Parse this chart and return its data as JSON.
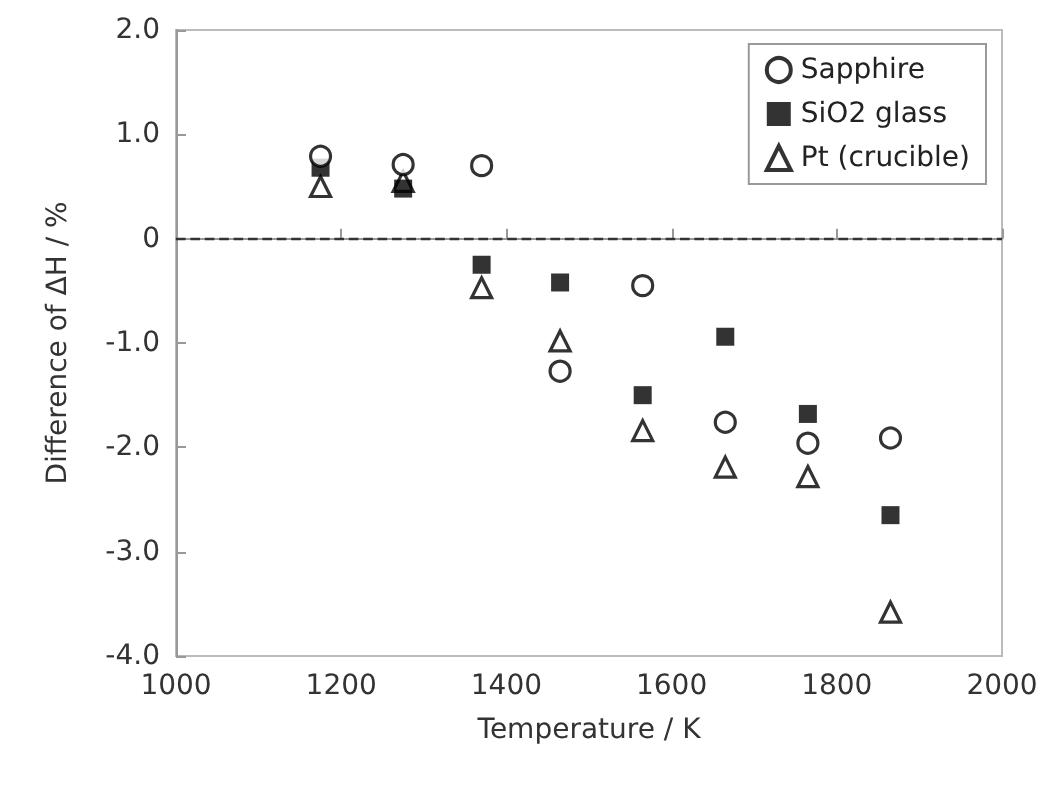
{
  "chart_data": {
    "type": "scatter",
    "xlabel": "Temperature / K",
    "ylabel": "Difference of ΔH / %",
    "x": [
      1175,
      1275,
      1370,
      1465,
      1565,
      1665,
      1765,
      1865
    ],
    "series": [
      {
        "name": "Sapphire",
        "color": "#000000",
        "marker": "circle",
        "values": [
          0.79,
          0.71,
          0.7,
          -1.27,
          -0.45,
          -1.76,
          -1.96,
          -1.91
        ]
      },
      {
        "name": "SiO2 glass",
        "color": "#000000",
        "marker": "square",
        "values": [
          0.68,
          0.48,
          -0.25,
          -0.42,
          -1.5,
          -0.94,
          -1.68,
          -2.65
        ]
      },
      {
        "name": "Pt (crucible)",
        "color": "#000000",
        "marker": "triangle",
        "values": [
          0.5,
          0.55,
          -0.47,
          -0.98,
          -1.84,
          -2.19,
          -2.28,
          -3.58
        ]
      }
    ],
    "xlim": [
      1000,
      2000
    ],
    "xticks": [
      1000,
      1200,
      1400,
      1600,
      1800,
      2000
    ],
    "ylim": [
      -4,
      2
    ],
    "yticks": [
      {
        "value": -4,
        "label": "-4.0"
      },
      {
        "value": -3,
        "label": "-3.0"
      },
      {
        "value": -2,
        "label": "-2.0"
      },
      {
        "value": -1,
        "label": "-1.0"
      },
      {
        "value": 0,
        "label": "0"
      },
      {
        "value": 1,
        "label": "1.0"
      },
      {
        "value": 2,
        "label": "2.0"
      }
    ],
    "ref_lines": [
      {
        "axis": "y",
        "value": 0,
        "color": "#333333",
        "line_style": "dashed"
      }
    ],
    "grid": false,
    "legend": "top right"
  }
}
